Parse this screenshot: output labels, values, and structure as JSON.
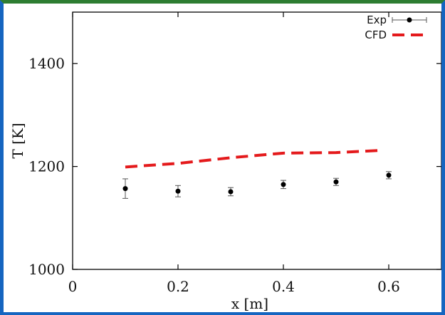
{
  "chart_data": {
    "type": "scatter",
    "xlabel": "x [m]",
    "ylabel": "T [K]",
    "xlim": [
      0,
      0.7
    ],
    "ylim": [
      1000,
      1500
    ],
    "xticks": [
      0,
      0.2,
      0.4,
      0.6
    ],
    "xtick_labels": [
      "0",
      "0.2",
      "0.4",
      "0.6"
    ],
    "yticks": [
      1000,
      1200,
      1400
    ],
    "ytick_labels": [
      "1000",
      "1200",
      "1400"
    ],
    "grid": false,
    "legend_position": "top-right",
    "series": [
      {
        "name": "Exp",
        "style": "points-with-errorbars",
        "color": "#000000",
        "x": [
          0.1,
          0.2,
          0.3,
          0.4,
          0.5,
          0.6
        ],
        "y": [
          1157,
          1152,
          1151,
          1165,
          1170,
          1183
        ],
        "yerr": [
          19,
          11,
          8,
          8,
          7,
          7
        ]
      },
      {
        "name": "CFD",
        "style": "dashed-line",
        "color": "#e41a1c",
        "x": [
          0.1,
          0.2,
          0.3,
          0.4,
          0.5,
          0.58
        ],
        "y": [
          1199,
          1206,
          1217,
          1226,
          1227,
          1231
        ]
      }
    ]
  }
}
